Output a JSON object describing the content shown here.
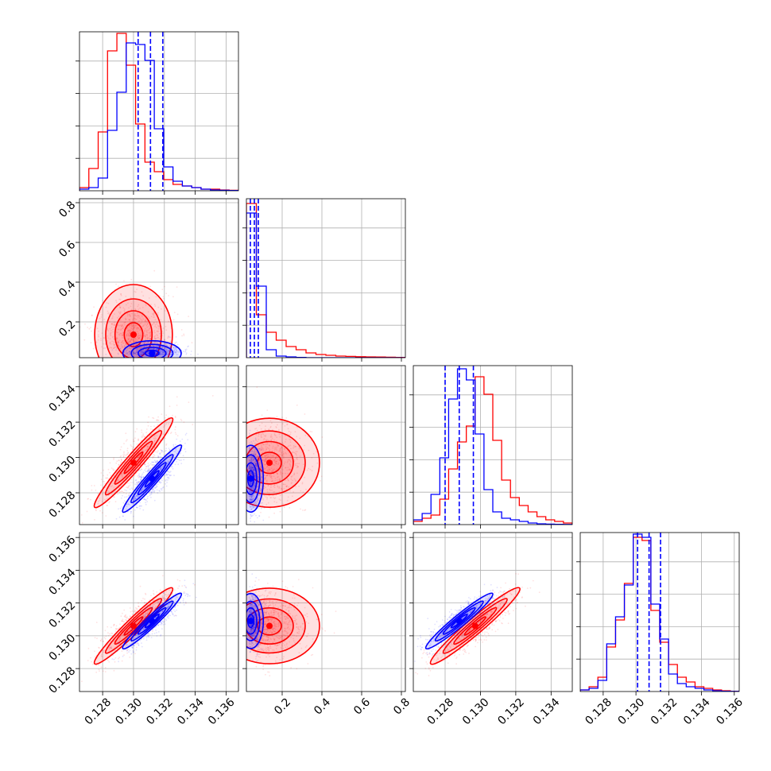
{
  "colors": {
    "series_red": "#ff0000",
    "series_blue": "#0000ff",
    "grid": "#b0b0b0"
  },
  "chart_data": {
    "type": "corner",
    "grid": true,
    "parameters": [
      {
        "range": [
          0.1265,
          0.1368
        ],
        "ticks": [
          0.128,
          0.13,
          0.132,
          0.134,
          0.136
        ],
        "tick_labels": [
          "0.128",
          "0.130",
          "0.132",
          "0.134",
          "0.136"
        ]
      },
      {
        "range": [
          0.02,
          0.82
        ],
        "ticks": [
          0.2,
          0.4,
          0.6,
          0.8
        ],
        "tick_labels": [
          "0.2",
          "0.4",
          "0.6",
          "0.8"
        ]
      },
      {
        "range": [
          0.1262,
          0.1352
        ],
        "ticks": [
          0.128,
          0.13,
          0.132,
          0.134
        ],
        "tick_labels": [
          "0.128",
          "0.130",
          "0.132",
          "0.134"
        ]
      },
      {
        "range": [
          0.1266,
          0.1363
        ],
        "ticks": [
          0.128,
          0.13,
          0.132,
          0.134,
          0.136
        ],
        "tick_labels": [
          "0.128",
          "0.130",
          "0.132",
          "0.134",
          "0.136"
        ]
      }
    ],
    "series": [
      {
        "color": "#ff0000",
        "means": [
          0.13,
          0.16,
          0.1297,
          0.1306
        ],
        "sds": [
          0.0012,
          0.12,
          0.0012,
          0.0011
        ]
      },
      {
        "color": "#0000ff",
        "means": [
          0.1312,
          0.06,
          0.1288,
          0.1309
        ],
        "sds": [
          0.0009,
          0.03,
          0.0009,
          0.0008
        ]
      }
    ],
    "quantiles": [
      [
        0.1303,
        0.1311,
        0.1319
      ],
      [
        0.04,
        0.06,
        0.08
      ],
      [
        0.128,
        0.1288,
        0.1296
      ],
      [
        0.1301,
        0.1308,
        0.1315
      ]
    ],
    "histograms": [
      {
        "edges_range": [
          0.1265,
          0.1368
        ],
        "red": [
          0.02,
          0.14,
          0.37,
          0.88,
          0.99,
          0.79,
          0.42,
          0.18,
          0.12,
          0.07,
          0.04,
          0.03,
          0.02,
          0.01,
          0.01,
          0.005,
          0.003
        ],
        "blue": [
          0.01,
          0.02,
          0.08,
          0.38,
          0.62,
          0.93,
          0.92,
          0.82,
          0.39,
          0.15,
          0.06,
          0.03,
          0.02,
          0.01,
          0.005,
          0.003,
          0.002
        ]
      },
      {
        "edges_range": [
          0.02,
          0.82
        ],
        "red": [
          0.97,
          0.27,
          0.16,
          0.11,
          0.07,
          0.05,
          0.03,
          0.02,
          0.015,
          0.01,
          0.008,
          0.006,
          0.005,
          0.004,
          0.003,
          0.002
        ],
        "blue": [
          0.91,
          0.45,
          0.05,
          0.01,
          0.005,
          0.002,
          0,
          0,
          0,
          0,
          0,
          0,
          0,
          0,
          0,
          0
        ]
      },
      {
        "edges_range": [
          0.1262,
          0.1352
        ],
        "red": [
          0.02,
          0.04,
          0.06,
          0.16,
          0.35,
          0.52,
          0.62,
          0.93,
          0.82,
          0.53,
          0.28,
          0.17,
          0.12,
          0.08,
          0.05,
          0.03,
          0.02,
          0.01
        ],
        "blue": [
          0.03,
          0.07,
          0.19,
          0.42,
          0.79,
          0.98,
          0.91,
          0.57,
          0.22,
          0.08,
          0.04,
          0.03,
          0.02,
          0.01,
          0.005,
          0.003,
          0.002,
          0.001
        ]
      },
      {
        "edges_range": [
          0.1266,
          0.1363
        ],
        "red": [
          0.01,
          0.03,
          0.09,
          0.28,
          0.45,
          0.68,
          0.97,
          0.95,
          0.51,
          0.31,
          0.17,
          0.09,
          0.06,
          0.03,
          0.02,
          0.01,
          0.005,
          0.002
        ],
        "blue": [
          0.01,
          0.02,
          0.07,
          0.3,
          0.47,
          0.67,
          0.99,
          0.97,
          0.55,
          0.33,
          0.11,
          0.05,
          0.03,
          0.02,
          0.01,
          0.005,
          0.002,
          0.001
        ]
      }
    ]
  }
}
